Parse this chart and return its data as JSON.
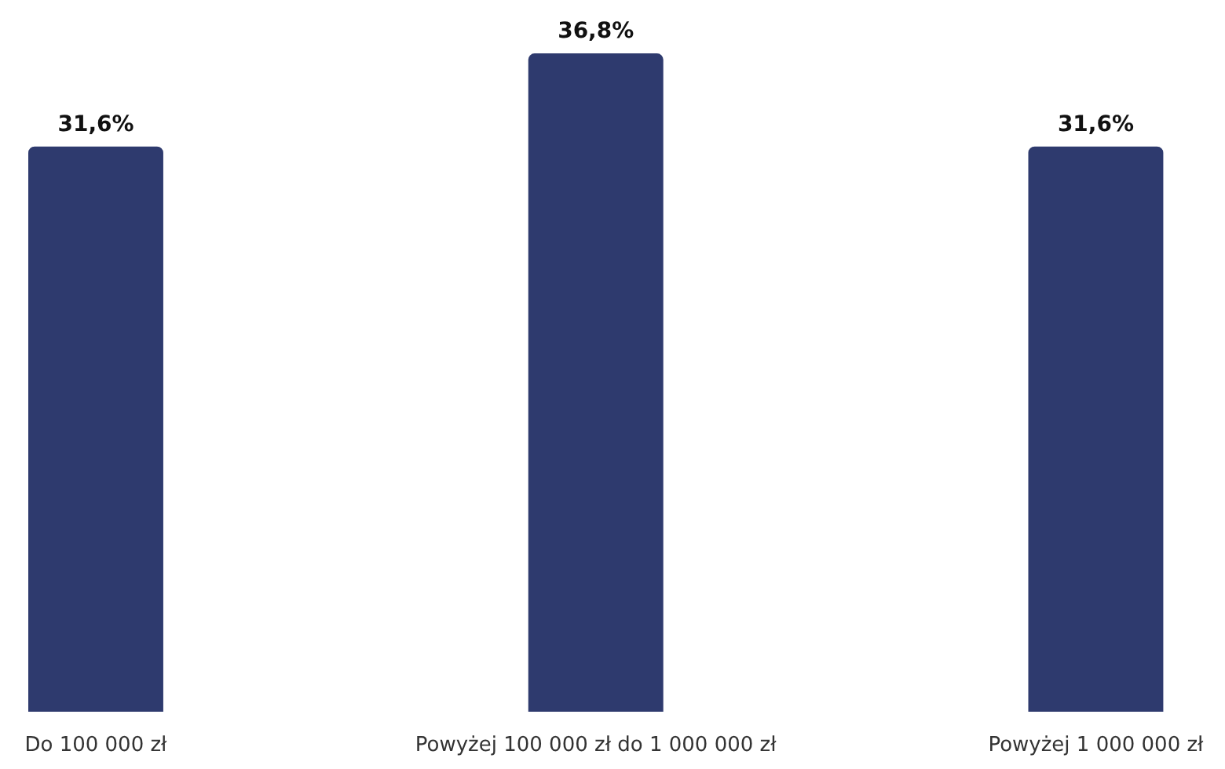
{
  "chart_data": {
    "type": "bar",
    "categories": [
      "Do 100 000 zł",
      "Powyżej 100 000 zł do 1 000 000 zł",
      "Powyżej 1 000 000 zł"
    ],
    "values": [
      31.6,
      36.8,
      31.6
    ],
    "value_labels": [
      "31,6%",
      "36,8%",
      "31,6%"
    ],
    "color": "#2e3a6e"
  }
}
